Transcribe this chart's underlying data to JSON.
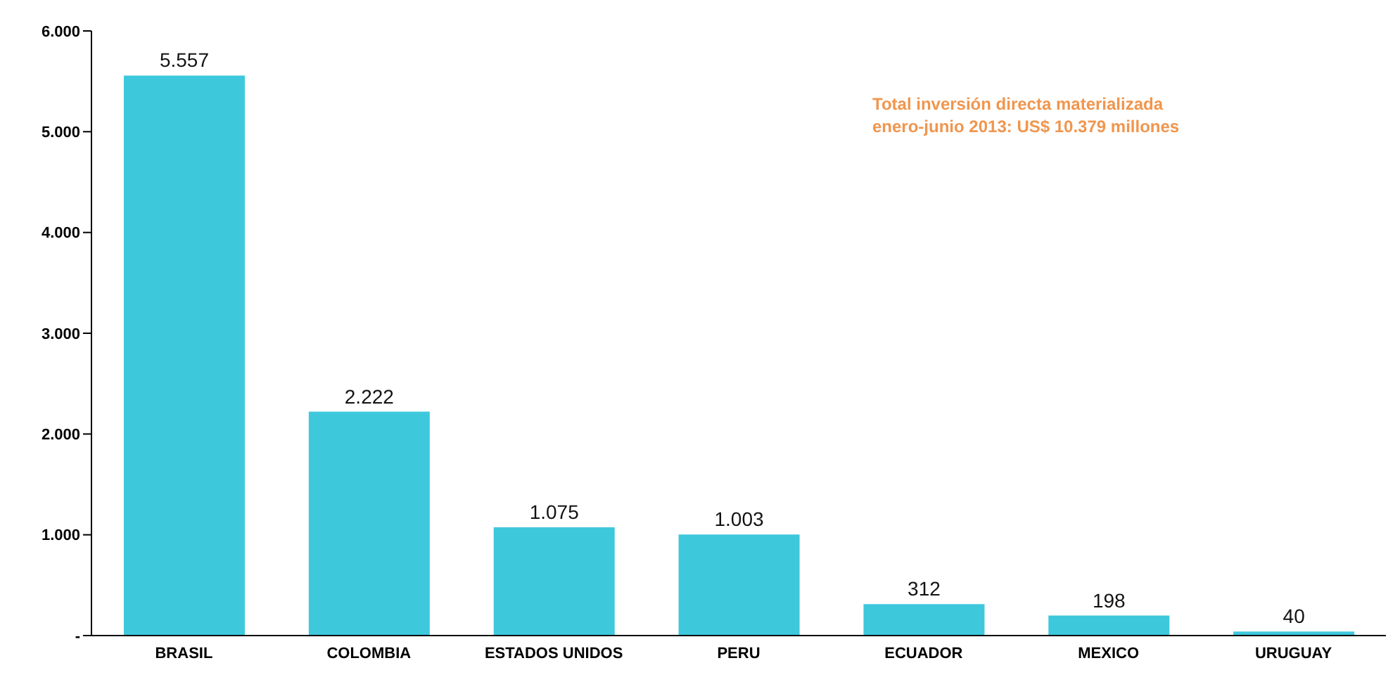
{
  "chart_data": {
    "type": "bar",
    "categories": [
      "BRASIL",
      "COLOMBIA",
      "ESTADOS UNIDOS",
      "PERU",
      "ECUADOR",
      "MEXICO",
      "URUGUAY"
    ],
    "values": [
      5557,
      2222,
      1075,
      1003,
      312,
      198,
      40
    ],
    "value_labels": [
      "5.557",
      "2.222",
      "1.075",
      "1.003",
      "312",
      "198",
      "40"
    ],
    "color": "#3ec8dc",
    "ylim": [
      0,
      6000
    ],
    "yticks": [
      {
        "value": 0,
        "label": "-"
      },
      {
        "value": 1000,
        "label": "1.000"
      },
      {
        "value": 2000,
        "label": "2.000"
      },
      {
        "value": 3000,
        "label": "3.000"
      },
      {
        "value": 4000,
        "label": "4.000"
      },
      {
        "value": 5000,
        "label": "5.000"
      },
      {
        "value": 6000,
        "label": "6.000"
      }
    ],
    "grid": false,
    "legend": false,
    "annotations": [
      "Total inversión directa materializada",
      "enero-junio 2013:   US$ 10.379 millones"
    ]
  }
}
